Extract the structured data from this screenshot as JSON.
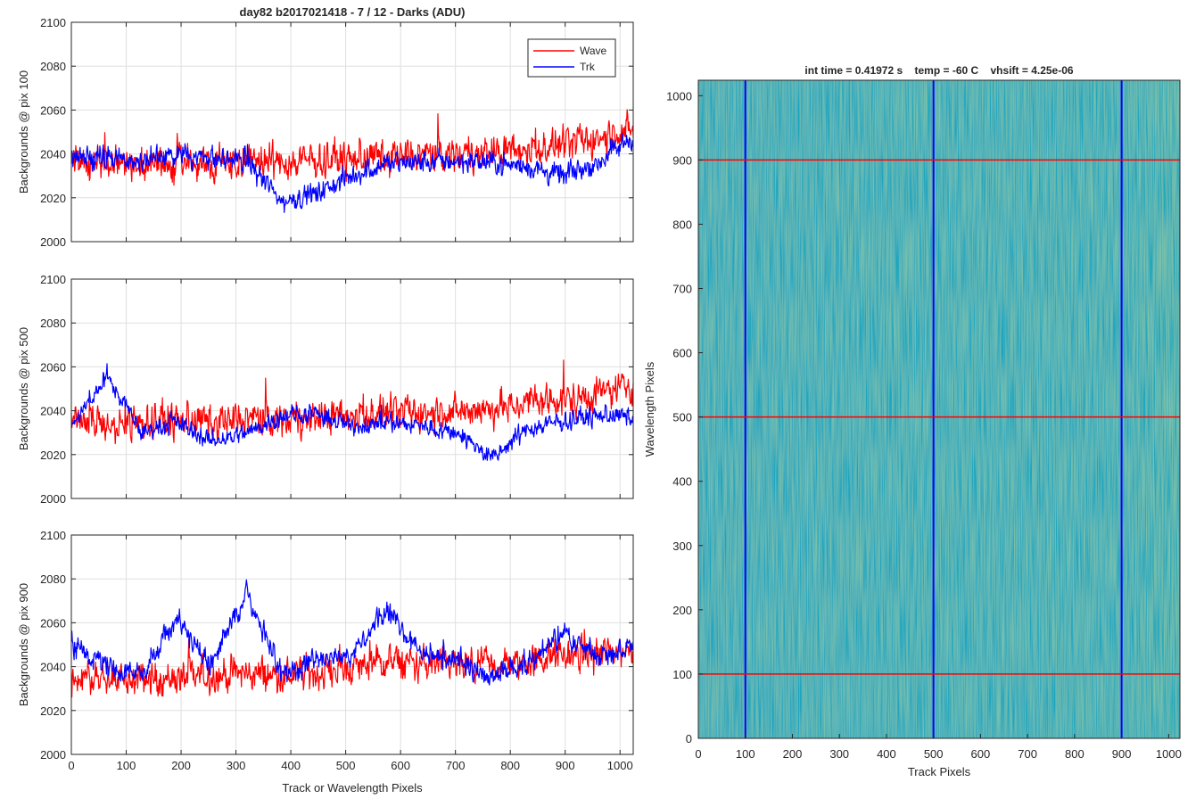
{
  "figure": {
    "suptitle": "day82 b2017021418 - 7 / 12 - Darks (ADU)"
  },
  "chart_data": [
    {
      "type": "line",
      "ylabel": "Backgrounds @ pix 100",
      "xlabel": "",
      "xlim": [
        0,
        1024
      ],
      "ylim": [
        2000,
        2100
      ],
      "xticks": [
        0,
        100,
        200,
        300,
        400,
        500,
        600,
        700,
        800,
        900,
        1000
      ],
      "yticks": [
        2000,
        2020,
        2040,
        2060,
        2080,
        2100
      ],
      "show_xtick_labels": false,
      "grid": true,
      "legend": {
        "placement": "top-right",
        "entries": [
          "Wave",
          "Trk"
        ]
      },
      "series": [
        {
          "name": "Wave",
          "color": "#ff0000",
          "x": [
            0,
            64,
            128,
            192,
            256,
            320,
            384,
            448,
            512,
            576,
            640,
            704,
            768,
            832,
            896,
            960,
            1024
          ],
          "values": [
            2037,
            2036,
            2035,
            2037,
            2036,
            2037,
            2036,
            2037,
            2038,
            2039,
            2039,
            2040,
            2041,
            2042,
            2044,
            2047,
            2052
          ],
          "noise": 9
        },
        {
          "name": "Trk",
          "color": "#0000ff",
          "x": [
            0,
            64,
            128,
            192,
            256,
            320,
            384,
            448,
            512,
            576,
            640,
            704,
            768,
            832,
            896,
            960,
            1024
          ],
          "values": [
            2038,
            2038,
            2037,
            2040,
            2038,
            2037,
            2018,
            2022,
            2030,
            2036,
            2036,
            2037,
            2036,
            2034,
            2030,
            2036,
            2048
          ],
          "noise": 6
        }
      ]
    },
    {
      "type": "line",
      "ylabel": "Backgrounds @ pix 500",
      "xlabel": "",
      "xlim": [
        0,
        1024
      ],
      "ylim": [
        2000,
        2100
      ],
      "xticks": [
        0,
        100,
        200,
        300,
        400,
        500,
        600,
        700,
        800,
        900,
        1000
      ],
      "yticks": [
        2000,
        2020,
        2040,
        2060,
        2080,
        2100
      ],
      "show_xtick_labels": false,
      "grid": true,
      "series": [
        {
          "name": "Wave",
          "color": "#ff0000",
          "x": [
            0,
            64,
            128,
            192,
            256,
            320,
            384,
            448,
            512,
            576,
            640,
            704,
            768,
            832,
            896,
            960,
            1024
          ],
          "values": [
            2036,
            2034,
            2035,
            2036,
            2035,
            2036,
            2036,
            2037,
            2038,
            2039,
            2039,
            2040,
            2041,
            2043,
            2045,
            2047,
            2052
          ],
          "noise": 9
        },
        {
          "name": "Trk",
          "color": "#0000ff",
          "x": [
            0,
            64,
            128,
            192,
            256,
            320,
            384,
            448,
            512,
            576,
            640,
            704,
            768,
            832,
            896,
            960,
            1024
          ],
          "values": [
            2032,
            2056,
            2030,
            2035,
            2026,
            2030,
            2038,
            2038,
            2033,
            2035,
            2033,
            2030,
            2018,
            2032,
            2035,
            2038,
            2037
          ],
          "noise": 5
        }
      ]
    },
    {
      "type": "line",
      "ylabel": "Backgrounds @ pix 900",
      "xlabel": "Track or Wavelength Pixels",
      "xlim": [
        0,
        1024
      ],
      "ylim": [
        2000,
        2100
      ],
      "xticks": [
        0,
        100,
        200,
        300,
        400,
        500,
        600,
        700,
        800,
        900,
        1000
      ],
      "yticks": [
        2000,
        2020,
        2040,
        2060,
        2080,
        2100
      ],
      "show_xtick_labels": true,
      "grid": true,
      "series": [
        {
          "name": "Wave",
          "color": "#ff0000",
          "x": [
            0,
            64,
            128,
            192,
            256,
            320,
            384,
            448,
            512,
            576,
            640,
            704,
            768,
            832,
            896,
            960,
            1024
          ],
          "values": [
            2036,
            2034,
            2034,
            2035,
            2036,
            2037,
            2036,
            2037,
            2040,
            2042,
            2041,
            2040,
            2040,
            2042,
            2045,
            2046,
            2048
          ],
          "noise": 9
        },
        {
          "name": "Trk",
          "color": "#0000ff",
          "x": [
            0,
            64,
            128,
            192,
            256,
            320,
            384,
            448,
            512,
            576,
            640,
            704,
            768,
            832,
            896,
            960,
            1024
          ],
          "values": [
            2050,
            2040,
            2036,
            2062,
            2040,
            2075,
            2036,
            2044,
            2044,
            2066,
            2045,
            2043,
            2035,
            2042,
            2055,
            2045,
            2050
          ],
          "noise": 6
        }
      ]
    },
    {
      "type": "heatmap",
      "title": "int time = 0.41972 s    temp = -60 C    vhsift = 4.25e-06",
      "xlabel": "Track Pixels",
      "ylabel": "Wavelength Pixels",
      "xlim": [
        0,
        1024
      ],
      "ylim": [
        0,
        1024
      ],
      "xticks": [
        0,
        100,
        200,
        300,
        400,
        500,
        600,
        700,
        800,
        900,
        1000
      ],
      "yticks": [
        0,
        100,
        200,
        300,
        400,
        500,
        600,
        700,
        800,
        900,
        1000
      ],
      "colormap": "parula",
      "base_color": "#1aa6c0",
      "vertical_markers": {
        "color": "#0000ff",
        "x": [
          100,
          500,
          900
        ]
      },
      "horizontal_markers": {
        "color": "#ff0000",
        "y": [
          100,
          500,
          900
        ]
      }
    }
  ]
}
